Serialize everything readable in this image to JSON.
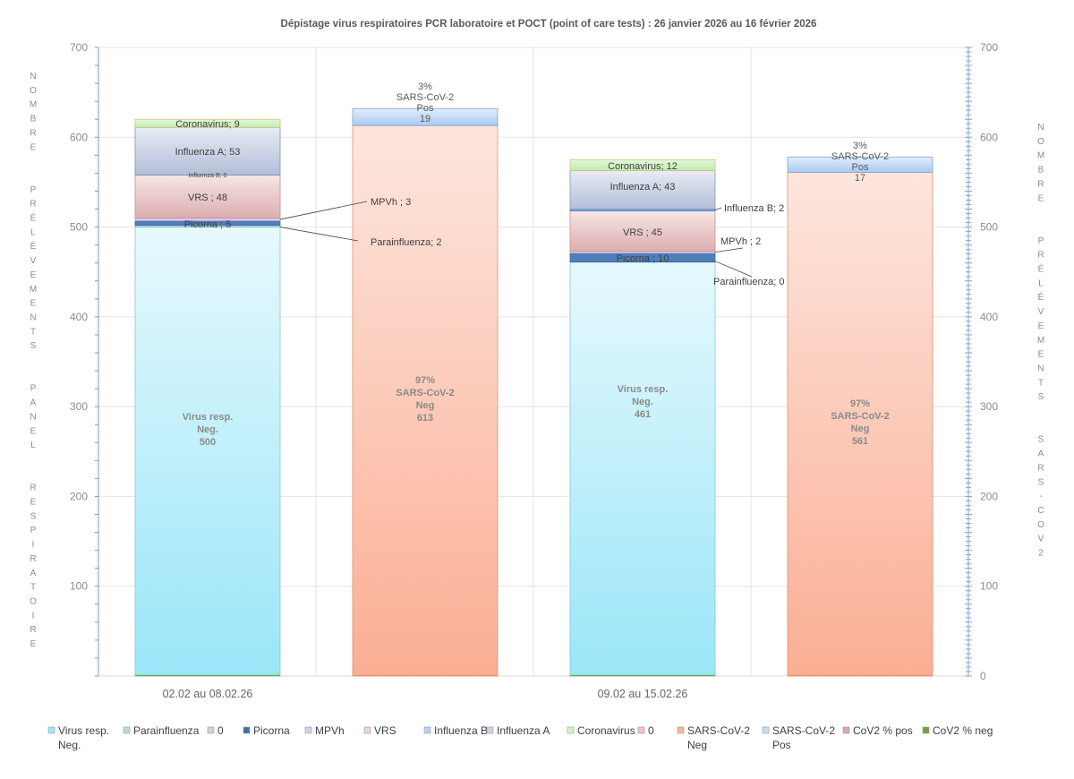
{
  "chart_data": {
    "type": "bar",
    "stacked": true,
    "title": "Dépistage  virus  respiratoires  PCR laboratoire  et POCT  (point  of care tests) : 26 janvier 2026 au  16 février 2026",
    "y_left_label": "NOMBRE  PRÉLÈVEMENTS  PANEL  RESPIRATOIRE",
    "y_right_label": "NOMBRE  PRÉLÈVEMENTS  SARS-COV2",
    "ylim": [
      0,
      700
    ],
    "left_ticks": [
      "100",
      "200",
      "300",
      "400",
      "500",
      "600",
      "700"
    ],
    "right_ticks": [
      "0",
      "100",
      "200",
      "300",
      "400",
      "500",
      "600",
      "700"
    ],
    "categories": [
      "02.02 au 08.02.26",
      "09.02 au 15.02.26"
    ],
    "grid": true,
    "legend_position": "bottom",
    "bars": [
      {
        "group": "02.02 au 08.02.26",
        "axis": "left",
        "segments": [
          {
            "name": "Virus resp. Neg.",
            "value": 500,
            "color": "#bff0fb",
            "label_lines": [
              "Virus resp.",
              "Neg.",
              "500"
            ]
          },
          {
            "name": "Parainfluenza",
            "value": 2,
            "color": "#a9d4dc",
            "label": "Parainfluenza; 2"
          },
          {
            "name": "Picorna",
            "value": 5,
            "color": "#4f7fb8",
            "label": "Picorna ; 5"
          },
          {
            "name": "MPVh",
            "value": 3,
            "color": "#d8c8ec",
            "label": "MPVh ; 3"
          },
          {
            "name": "VRS",
            "value": 48,
            "color": "#eccccc",
            "label": "VRS  ; 48"
          },
          {
            "name": "Influenza B",
            "value": 0,
            "color": "#b9cdf0",
            "label": "Influenza B; 0"
          },
          {
            "name": "Influenza A",
            "value": 53,
            "color": "#cdd6e6",
            "label": "Influenza A; 53"
          },
          {
            "name": "Coronavirus",
            "value": 9,
            "color": "#c9f0c0",
            "label": "Coronavirus; 9"
          }
        ]
      },
      {
        "group": "02.02 au 08.02.26",
        "axis": "right",
        "segments": [
          {
            "name": "SARS-CoV-2 Neg",
            "value": 613,
            "color": "#fbc7b5",
            "label_lines": [
              "97%",
              "SARS-CoV-2",
              "Neg",
              "613"
            ]
          },
          {
            "name": "SARS-CoV-2 Pos",
            "value": 19,
            "color": "#c5dcf6",
            "label_lines": [
              "3%",
              "SARS-CoV-2",
              "Pos",
              "19"
            ]
          }
        ]
      },
      {
        "group": "09.02 au 15.02.26",
        "axis": "left",
        "segments": [
          {
            "name": "Virus resp. Neg.",
            "value": 461,
            "color": "#bff0fb",
            "label_lines": [
              "Virus resp.",
              "Neg.",
              "461"
            ]
          },
          {
            "name": "Parainfluenza",
            "value": 0,
            "color": "#a9d4dc",
            "label": "Parainfluenza; 0"
          },
          {
            "name": "Picorna",
            "value": 10,
            "color": "#4f7fb8",
            "label": "Picorna ; 10"
          },
          {
            "name": "MPVh",
            "value": 2,
            "color": "#d8c8ec",
            "label": "MPVh ; 2"
          },
          {
            "name": "VRS",
            "value": 45,
            "color": "#eccccc",
            "label": "VRS  ; 45"
          },
          {
            "name": "Influenza B",
            "value": 2,
            "color": "#b9cdf0",
            "label": "Influenza B; 2"
          },
          {
            "name": "Influenza A",
            "value": 43,
            "color": "#cdd6e6",
            "label": "Influenza A; 43"
          },
          {
            "name": "Coronavirus",
            "value": 12,
            "color": "#c9f0c0",
            "label": "Coronavirus; 12"
          }
        ]
      },
      {
        "group": "09.02 au 15.02.26",
        "axis": "right",
        "segments": [
          {
            "name": "SARS-CoV-2 Neg",
            "value": 561,
            "color": "#fbc7b5",
            "label_lines": [
              "97%",
              "SARS-CoV-2",
              "Neg",
              "561"
            ]
          },
          {
            "name": "SARS-CoV-2 Pos",
            "value": 17,
            "color": "#c5dcf6",
            "label_lines": [
              "3%",
              "SARS-CoV-2",
              "Pos",
              "17"
            ]
          }
        ]
      }
    ],
    "legend": [
      {
        "label": "Virus resp.\nNeg.",
        "color": "#9ee6f7"
      },
      {
        "label": "Parainfluenza",
        "color": "#b5dde3"
      },
      {
        "label": "0",
        "color": "#d0cfdc"
      },
      {
        "label": "Picorna",
        "color": "#3f6fa8"
      },
      {
        "label": "MPVh",
        "color": "#dccbee"
      },
      {
        "label": "VRS",
        "color": "#f0d0d0"
      },
      {
        "label": "Influenza B",
        "color": "#bcd0f2"
      },
      {
        "label": "Influenza A",
        "color": "#c9d3e6"
      },
      {
        "label": "Coronavirus",
        "color": "#d3f2c8"
      },
      {
        "label": "0",
        "color": "#f7c0c0"
      },
      {
        "label": "SARS-CoV-2\nNeg",
        "color": "#f8b79c"
      },
      {
        "label": "SARS-CoV-2\nPos",
        "color": "#c8ddf7"
      },
      {
        "label": "CoV2 % pos",
        "color": "#d8a8a8"
      },
      {
        "label": "CoV2 % neg",
        "color": "#70a040"
      }
    ]
  }
}
